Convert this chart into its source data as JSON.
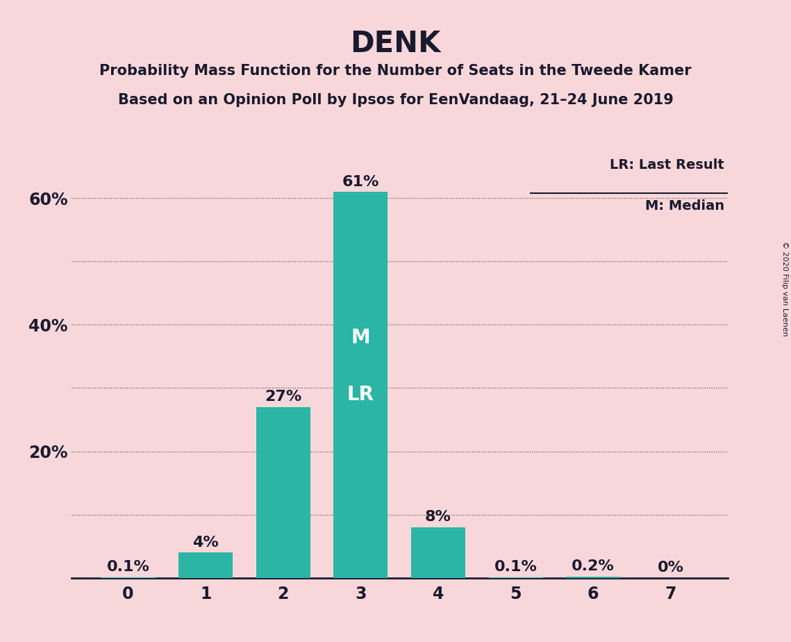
{
  "title": "DENK",
  "subtitle1": "Probability Mass Function for the Number of Seats in the Tweede Kamer",
  "subtitle2": "Based on an Opinion Poll by Ipsos for EenVandaag, 21–24 June 2019",
  "copyright": "© 2020 Filip van Laenen",
  "categories": [
    0,
    1,
    2,
    3,
    4,
    5,
    6,
    7
  ],
  "values": [
    0.1,
    4.0,
    27.0,
    61.0,
    8.0,
    0.1,
    0.2,
    0.0
  ],
  "bar_labels": [
    "0.1%",
    "4%",
    "27%",
    "61%",
    "8%",
    "0.1%",
    "0.2%",
    "0%"
  ],
  "bar_color": "#2ab5a5",
  "background_color": "#f8d7da",
  "title_fontsize": 30,
  "subtitle_fontsize": 15,
  "tick_fontsize": 17,
  "ylim": [
    0,
    68
  ],
  "ytick_labeled": [
    20,
    40,
    60
  ],
  "ytick_all": [
    10,
    20,
    30,
    40,
    50,
    60
  ],
  "median_seat": 3,
  "last_result_seat": 3,
  "legend_lr": "LR: Last Result",
  "legend_m": "M: Median",
  "bar_label_inside_color": "#ffffff",
  "bar_label_outside_color": "#1a1a2e",
  "inside_threshold": 10.0,
  "bar_label_fontsize": 16,
  "m_lr_fontsize": 20,
  "text_color": "#1a1a2e"
}
